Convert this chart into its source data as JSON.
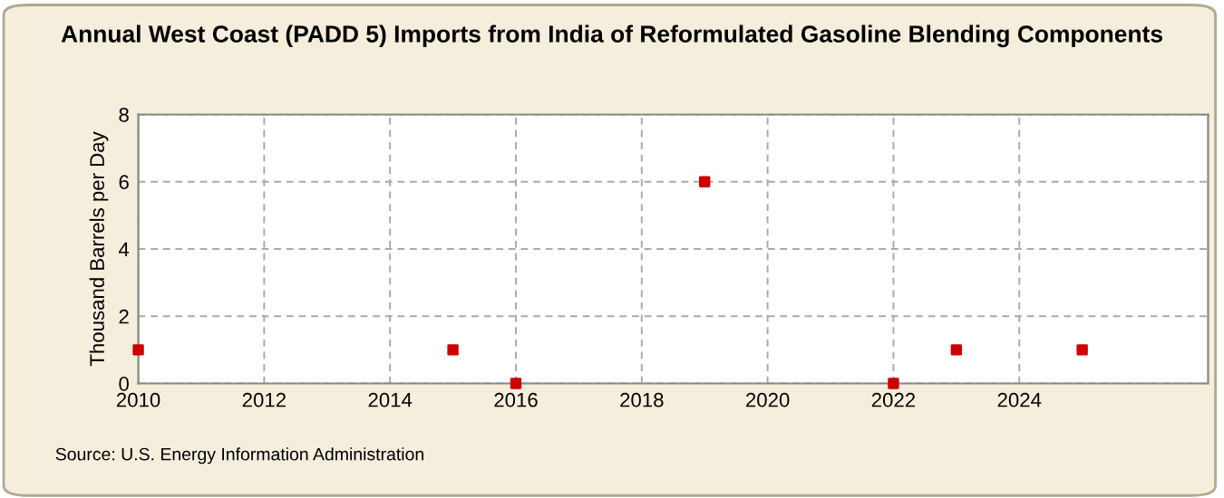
{
  "chart_data": {
    "type": "scatter",
    "title": "Annual West Coast (PADD 5) Imports from India of Reformulated Gasoline Blending Components",
    "ylabel": "Thousand Barrels per Day",
    "x": [
      2010,
      2015,
      2016,
      2019,
      2022,
      2023,
      2025
    ],
    "series": [
      {
        "color": "#cc0000",
        "values": [
          1,
          1,
          0,
          6,
          0,
          1,
          1
        ]
      }
    ],
    "xlim": [
      2010,
      2027
    ],
    "xticks": [
      2010,
      2012,
      2014,
      2016,
      2018,
      2020,
      2022,
      2024
    ],
    "ylim": [
      0,
      8
    ],
    "yticks": [
      0,
      2,
      4,
      6,
      8
    ],
    "grid": true,
    "marker": "square",
    "annotations": [
      "Source: U.S. Energy Information Administration"
    ]
  }
}
